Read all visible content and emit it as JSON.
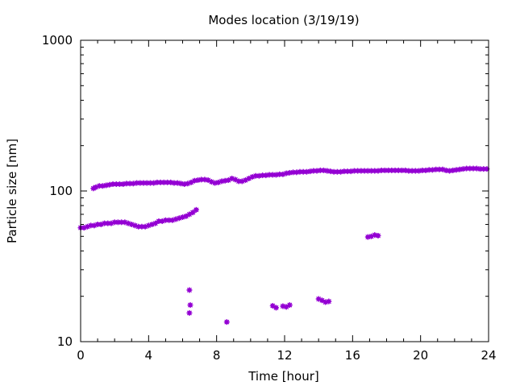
{
  "chart_data": {
    "type": "scatter",
    "title": "Modes location (3/19/19)",
    "xlabel": "Time [hour]",
    "ylabel": "Particle size [nm]",
    "xlim": [
      0,
      24
    ],
    "ylim": [
      10,
      1000
    ],
    "yscale": "log",
    "x_ticks": [
      0,
      4,
      8,
      12,
      16,
      20,
      24
    ],
    "y_ticks": [
      10,
      100,
      1000
    ],
    "grid": false,
    "legend": "none",
    "marker_color": "#9400d3",
    "series": [
      {
        "points": [
          [
            0.75,
            104
          ],
          [
            0.9,
            106
          ],
          [
            1.1,
            108
          ],
          [
            1.3,
            108
          ],
          [
            1.5,
            109
          ],
          [
            1.7,
            110
          ],
          [
            1.9,
            111
          ],
          [
            2.1,
            111
          ],
          [
            2.3,
            111
          ],
          [
            2.5,
            111
          ],
          [
            2.7,
            112
          ],
          [
            2.9,
            112
          ],
          [
            3.1,
            112
          ],
          [
            3.3,
            113
          ],
          [
            3.5,
            113
          ],
          [
            3.7,
            113
          ],
          [
            3.9,
            113
          ],
          [
            4.1,
            113
          ],
          [
            4.3,
            113
          ],
          [
            4.5,
            114
          ],
          [
            4.7,
            114
          ],
          [
            4.9,
            114
          ],
          [
            5.1,
            114
          ],
          [
            5.3,
            114
          ],
          [
            5.5,
            113
          ],
          [
            5.7,
            113
          ],
          [
            5.9,
            112
          ],
          [
            6.1,
            111
          ],
          [
            6.3,
            112
          ],
          [
            6.5,
            114
          ],
          [
            6.7,
            117
          ],
          [
            6.9,
            118
          ],
          [
            7.1,
            119
          ],
          [
            7.3,
            119
          ],
          [
            7.5,
            118
          ],
          [
            7.7,
            115
          ],
          [
            7.9,
            113
          ],
          [
            8.1,
            114
          ],
          [
            8.3,
            116
          ],
          [
            8.5,
            117
          ],
          [
            8.7,
            118
          ],
          [
            8.9,
            121
          ],
          [
            9.1,
            119
          ],
          [
            9.3,
            116
          ],
          [
            9.5,
            116
          ],
          [
            9.7,
            118
          ],
          [
            9.9,
            121
          ],
          [
            10.1,
            124
          ],
          [
            10.3,
            126
          ],
          [
            10.5,
            126
          ],
          [
            10.7,
            127
          ],
          [
            10.9,
            127
          ],
          [
            11.1,
            128
          ],
          [
            11.3,
            128
          ],
          [
            11.5,
            128
          ],
          [
            11.7,
            129
          ],
          [
            11.9,
            129
          ],
          [
            12.1,
            131
          ],
          [
            12.3,
            132
          ],
          [
            12.5,
            133
          ],
          [
            12.7,
            133
          ],
          [
            12.9,
            134
          ],
          [
            13.1,
            134
          ],
          [
            13.3,
            134
          ],
          [
            13.5,
            135
          ],
          [
            13.7,
            136
          ],
          [
            13.9,
            136
          ],
          [
            14.1,
            137
          ],
          [
            14.3,
            137
          ],
          [
            14.5,
            136
          ],
          [
            14.7,
            135
          ],
          [
            14.9,
            134
          ],
          [
            15.1,
            134
          ],
          [
            15.3,
            134
          ],
          [
            15.5,
            135
          ],
          [
            15.7,
            135
          ],
          [
            15.9,
            135
          ],
          [
            16.1,
            136
          ],
          [
            16.3,
            136
          ],
          [
            16.5,
            136
          ],
          [
            16.7,
            136
          ],
          [
            16.9,
            136
          ],
          [
            17.1,
            136
          ],
          [
            17.3,
            136
          ],
          [
            17.5,
            136
          ],
          [
            17.7,
            137
          ],
          [
            17.9,
            137
          ],
          [
            18.1,
            137
          ],
          [
            18.3,
            137
          ],
          [
            18.5,
            137
          ],
          [
            18.7,
            137
          ],
          [
            18.9,
            137
          ],
          [
            19.1,
            137
          ],
          [
            19.3,
            136
          ],
          [
            19.5,
            136
          ],
          [
            19.7,
            136
          ],
          [
            19.9,
            136
          ],
          [
            20.1,
            137
          ],
          [
            20.3,
            137
          ],
          [
            20.5,
            138
          ],
          [
            20.7,
            138
          ],
          [
            20.9,
            139
          ],
          [
            21.1,
            139
          ],
          [
            21.3,
            139
          ],
          [
            21.5,
            137
          ],
          [
            21.7,
            136
          ],
          [
            21.9,
            137
          ],
          [
            22.1,
            138
          ],
          [
            22.3,
            139
          ],
          [
            22.5,
            140
          ],
          [
            22.7,
            141
          ],
          [
            22.9,
            141
          ],
          [
            23.1,
            141
          ],
          [
            23.3,
            141
          ],
          [
            23.5,
            140
          ],
          [
            23.7,
            140
          ],
          [
            23.9,
            140
          ],
          [
            0.0,
            57
          ],
          [
            0.2,
            57
          ],
          [
            0.4,
            58
          ],
          [
            0.6,
            59
          ],
          [
            0.8,
            59
          ],
          [
            1.0,
            60
          ],
          [
            1.2,
            60
          ],
          [
            1.4,
            61
          ],
          [
            1.6,
            61
          ],
          [
            1.8,
            61
          ],
          [
            2.0,
            62
          ],
          [
            2.2,
            62
          ],
          [
            2.4,
            62
          ],
          [
            2.6,
            62
          ],
          [
            2.8,
            61
          ],
          [
            3.0,
            60
          ],
          [
            3.2,
            59
          ],
          [
            3.4,
            58
          ],
          [
            3.6,
            58
          ],
          [
            3.8,
            58
          ],
          [
            4.0,
            59
          ],
          [
            4.2,
            60
          ],
          [
            4.4,
            61
          ],
          [
            4.6,
            63
          ],
          [
            4.8,
            63
          ],
          [
            5.0,
            64
          ],
          [
            5.2,
            64
          ],
          [
            5.4,
            64
          ],
          [
            5.6,
            65
          ],
          [
            5.8,
            66
          ],
          [
            6.0,
            67
          ],
          [
            6.2,
            68
          ],
          [
            6.4,
            70
          ],
          [
            6.6,
            72
          ],
          [
            6.8,
            75
          ],
          [
            6.4,
            22
          ],
          [
            6.45,
            17.5
          ],
          [
            6.4,
            15.5
          ],
          [
            8.6,
            13.5
          ],
          [
            11.3,
            17.3
          ],
          [
            11.5,
            16.8
          ],
          [
            11.9,
            17.2
          ],
          [
            12.1,
            17.0
          ],
          [
            12.3,
            17.5
          ],
          [
            14.0,
            19.2
          ],
          [
            14.2,
            18.8
          ],
          [
            14.4,
            18.3
          ],
          [
            14.6,
            18.5
          ],
          [
            16.9,
            49.5
          ],
          [
            17.1,
            50
          ],
          [
            17.3,
            51
          ],
          [
            17.5,
            50.5
          ]
        ]
      }
    ]
  }
}
